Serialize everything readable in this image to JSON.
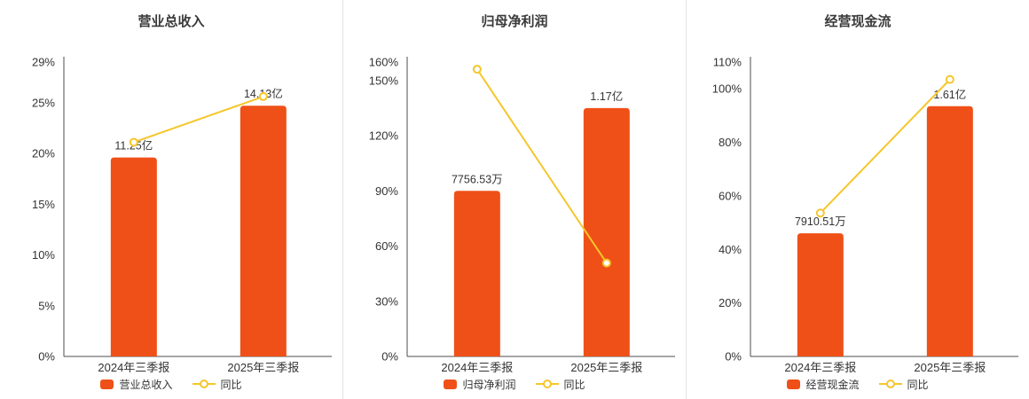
{
  "page": {
    "background": "#ffffff",
    "divider_color": "#e3e3e3"
  },
  "colors": {
    "bar": "#ef5017",
    "line": "#f6c62a",
    "text": "#333333",
    "axis": "#4c4c4c"
  },
  "chart_data": [
    {
      "type": "bar+line",
      "title": "营业总收入",
      "categories": [
        "2024年三季报",
        "2025年三季报"
      ],
      "ylim": [
        0,
        29
      ],
      "ytick_values": [
        0,
        5,
        10,
        15,
        20,
        25,
        29
      ],
      "grid": false,
      "legend_position": "bottom",
      "series": [
        {
          "name": "营业总收入",
          "type": "bar",
          "labels": [
            "11.25亿",
            "14.13亿"
          ],
          "axis_values": [
            19.6,
            24.7
          ]
        },
        {
          "name": "同比",
          "type": "line",
          "values": [
            21.1,
            25.6
          ]
        }
      ]
    },
    {
      "type": "bar+line",
      "title": "归母净利润",
      "categories": [
        "2024年三季报",
        "2025年三季报"
      ],
      "ylim": [
        0,
        160
      ],
      "ytick_values": [
        0,
        30,
        60,
        90,
        120,
        150,
        160
      ],
      "grid": false,
      "legend_position": "bottom",
      "series": [
        {
          "name": "归母净利润",
          "type": "bar",
          "labels": [
            "7756.53万",
            "1.17亿"
          ],
          "axis_values": [
            90,
            135
          ]
        },
        {
          "name": "同比",
          "type": "line",
          "values": [
            156.1,
            50.8
          ]
        }
      ]
    },
    {
      "type": "bar+line",
      "title": "经营现金流",
      "categories": [
        "2024年三季报",
        "2025年三季报"
      ],
      "ylim": [
        0,
        110
      ],
      "ytick_values": [
        0,
        20,
        40,
        60,
        80,
        100,
        110
      ],
      "grid": false,
      "legend_position": "bottom",
      "series": [
        {
          "name": "经营现金流",
          "type": "bar",
          "labels": [
            "7910.51万",
            "1.61亿"
          ],
          "axis_values": [
            46,
            93.5
          ]
        },
        {
          "name": "同比",
          "type": "line",
          "values": [
            53.6,
            103.5
          ]
        }
      ]
    }
  ]
}
